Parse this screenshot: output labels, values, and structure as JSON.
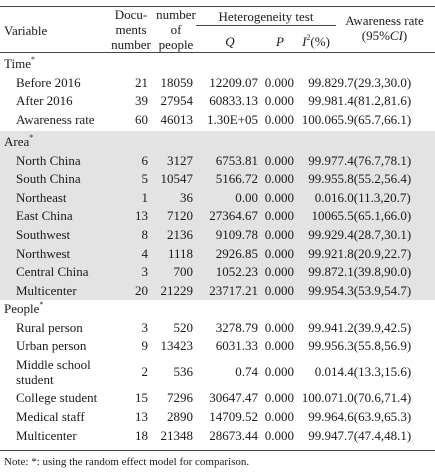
{
  "headers": {
    "variable": "Variable",
    "docs_line1": "Docu-",
    "docs_line2": "ments",
    "docs_line3": "number",
    "people_line1": "number",
    "people_line2": "of",
    "people_line3": "people",
    "heterogeneity": "Heterogeneity test",
    "q": "Q",
    "p": "P",
    "i2_base": "I",
    "i2_sup": "2",
    "i2_unit": "(%)",
    "awareness_line1": "Awareness rate",
    "awareness_line2_pre": "(95%",
    "awareness_line2_ci": "CI",
    "awareness_line2_post": ")"
  },
  "sections": [
    {
      "title": "Time",
      "star": "*",
      "shaded": false,
      "rows": [
        {
          "label": "Before 2016",
          "docs": "21",
          "people": "18059",
          "q": "12209.07",
          "p": "0.000",
          "i2": "99.8",
          "rate": "29.7(29.3,30.0)"
        },
        {
          "label": "After 2016",
          "docs": "39",
          "people": "27954",
          "q": "60833.13",
          "p": "0.000",
          "i2": "99.9",
          "rate": "81.4(81.2,81.6)"
        },
        {
          "label": "Awareness rate",
          "docs": "60",
          "people": "46013",
          "q": "1.30E+05",
          "p": "0.000",
          "i2": "100.0",
          "rate": "65.9(65.7,66.1)"
        }
      ]
    },
    {
      "title": "Area",
      "star": "*",
      "shaded": true,
      "rows": [
        {
          "label": "North China",
          "docs": "6",
          "people": "3127",
          "q": "6753.81",
          "p": "0.000",
          "i2": "99.9",
          "rate": "77.4(76.7,78.1)"
        },
        {
          "label": "South China",
          "docs": "5",
          "people": "10547",
          "q": "5166.72",
          "p": "0.000",
          "i2": "99.9",
          "rate": "55.8(55.2,56.4)"
        },
        {
          "label": "Northeast",
          "docs": "1",
          "people": "36",
          "q": "0.00",
          "p": "0.000",
          "i2": "0.0",
          "rate": "16.0(11.3,20.7)"
        },
        {
          "label": "East China",
          "docs": "13",
          "people": "7120",
          "q": "27364.67",
          "p": "0.000",
          "i2": "100",
          "rate": "65.5(65.1,66.0)"
        },
        {
          "label": "Southwest",
          "docs": "8",
          "people": "2136",
          "q": "9109.78",
          "p": "0.000",
          "i2": "99.9",
          "rate": "29.4(28.7,30.1)"
        },
        {
          "label": "Northwest",
          "docs": "4",
          "people": "1118",
          "q": "2926.85",
          "p": "0.000",
          "i2": "99.9",
          "rate": "21.8(20.9,22.7)"
        },
        {
          "label": "Central China",
          "docs": "3",
          "people": "700",
          "q": "1052.23",
          "p": "0.000",
          "i2": "99.8",
          "rate": "72.1(39.8,90.0)"
        },
        {
          "label": "Multicenter",
          "docs": "20",
          "people": "21229",
          "q": "23717.21",
          "p": "0.000",
          "i2": "99.9",
          "rate": "54.3(53.9,54.7)"
        }
      ]
    },
    {
      "title": "People",
      "star": "*",
      "shaded": false,
      "rows": [
        {
          "label": "Rural person",
          "docs": "3",
          "people": "520",
          "q": "3278.79",
          "p": "0.000",
          "i2": "99.9",
          "rate": "41.2(39.9,42.5)"
        },
        {
          "label": "Urban person",
          "docs": "9",
          "people": "13423",
          "q": "6031.33",
          "p": "0.000",
          "i2": "99.9",
          "rate": "56.3(55.8,56.9)"
        },
        {
          "label": "Middle school",
          "label2": "student",
          "docs": "2",
          "people": "536",
          "q": "0.74",
          "p": "0.000",
          "i2": "0.0",
          "rate": "14.4(13.3,15.6)"
        },
        {
          "label": "College student",
          "docs": "15",
          "people": "7296",
          "q": "30647.47",
          "p": "0.000",
          "i2": "100.0",
          "rate": "71.0(70.6,71.4)"
        },
        {
          "label": "Medical staff",
          "docs": "13",
          "people": "2890",
          "q": "14709.52",
          "p": "0.000",
          "i2": "99.9",
          "rate": "64.6(63.9,65.3)"
        },
        {
          "label": "Multicenter",
          "docs": "18",
          "people": "21348",
          "q": "28673.44",
          "p": "0.000",
          "i2": "99.9",
          "rate": "47.7(47.4,48.1)"
        }
      ]
    }
  ],
  "note": "Note: *: using the random effect model for comparison."
}
